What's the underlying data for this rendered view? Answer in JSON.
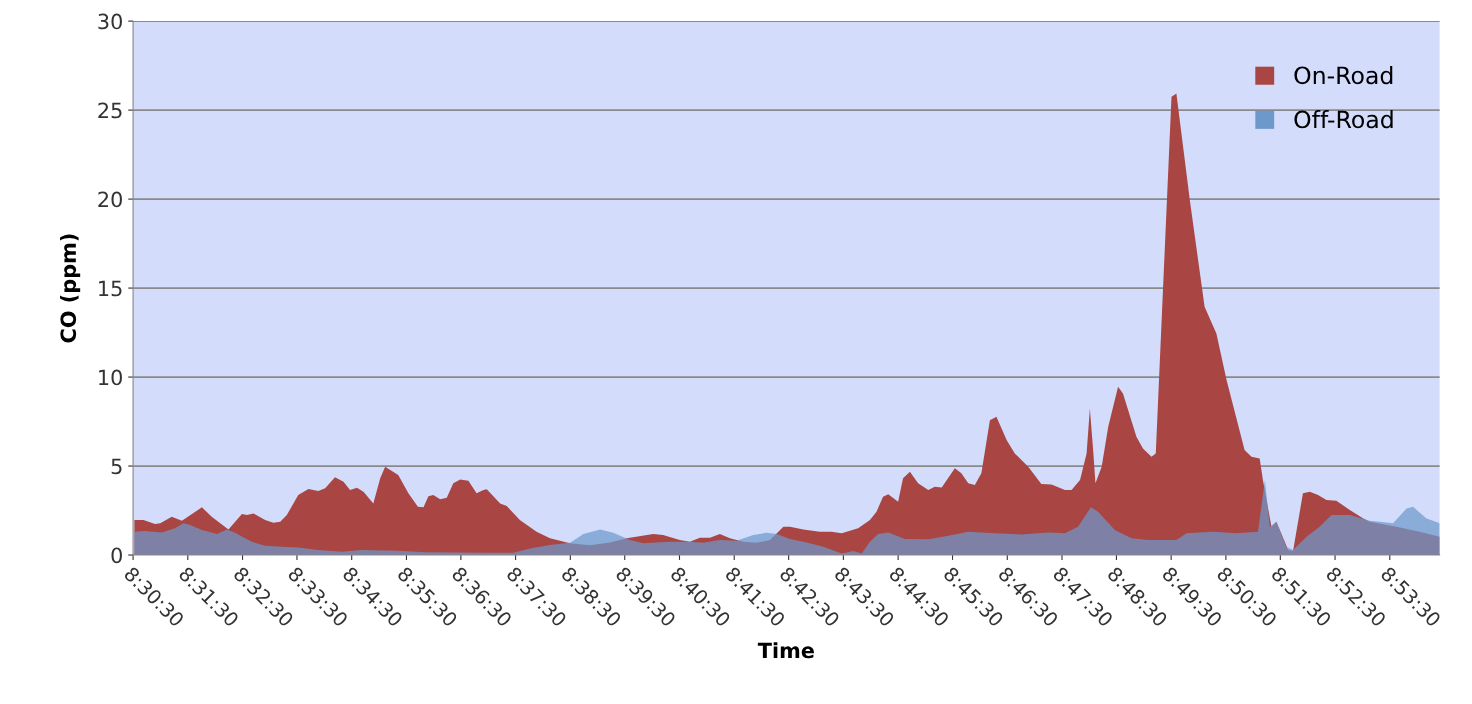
{
  "chart_data": {
    "type": "area",
    "xlabel": "Time",
    "ylabel": "CO (ppm)",
    "xlim": [
      8.5083,
      8.9069
    ],
    "ylim": [
      0,
      30
    ],
    "yticks": [
      0,
      5,
      10,
      15,
      20,
      25,
      30
    ],
    "xticks": [
      {
        "value": 8.5083,
        "label": "8:30:30"
      },
      {
        "value": 8.525,
        "label": "8:31:30"
      },
      {
        "value": 8.5417,
        "label": "8:32:30"
      },
      {
        "value": 8.5583,
        "label": "8:33:30"
      },
      {
        "value": 8.575,
        "label": "8:34:30"
      },
      {
        "value": 8.5917,
        "label": "8:35:30"
      },
      {
        "value": 8.6083,
        "label": "8:36:30"
      },
      {
        "value": 8.625,
        "label": "8:37:30"
      },
      {
        "value": 8.6417,
        "label": "8:38:30"
      },
      {
        "value": 8.6583,
        "label": "8:39:30"
      },
      {
        "value": 8.675,
        "label": "8:40:30"
      },
      {
        "value": 8.6917,
        "label": "8:41:30"
      },
      {
        "value": 8.7083,
        "label": "8:42:30"
      },
      {
        "value": 8.725,
        "label": "8:43:30"
      },
      {
        "value": 8.7417,
        "label": "8:44:30"
      },
      {
        "value": 8.7583,
        "label": "8:45:30"
      },
      {
        "value": 8.775,
        "label": "8:46:30"
      },
      {
        "value": 8.7917,
        "label": "8:47:30"
      },
      {
        "value": 8.8083,
        "label": "8:48:30"
      },
      {
        "value": 8.825,
        "label": "8:49:30"
      },
      {
        "value": 8.8417,
        "label": "8:50:30"
      },
      {
        "value": 8.8583,
        "label": "8:51:30"
      },
      {
        "value": 8.875,
        "label": "8:52:30"
      },
      {
        "value": 8.8917,
        "label": "8:53:30"
      }
    ],
    "grid": "y",
    "legend": "top right",
    "series": [
      {
        "name": "On-Road",
        "color": "#a94643",
        "x": [
          8.5087,
          8.5115,
          8.515,
          8.5166,
          8.5201,
          8.5232,
          8.5293,
          8.5323,
          8.5374,
          8.5415,
          8.543,
          8.545,
          8.5486,
          8.5511,
          8.5532,
          8.5552,
          8.5587,
          8.5618,
          8.5648,
          8.5669,
          8.5699,
          8.5725,
          8.5745,
          8.5766,
          8.5786,
          8.5816,
          8.5837,
          8.5852,
          8.5892,
          8.5923,
          8.5952,
          8.5969,
          8.5984,
          8.5999,
          8.602,
          8.604,
          8.606,
          8.6081,
          8.6106,
          8.6131,
          8.6152,
          8.6162,
          8.6203,
          8.6223,
          8.6263,
          8.6314,
          8.6355,
          8.6416,
          8.6477,
          8.6538,
          8.6589,
          8.667,
          8.67,
          8.6751,
          8.6782,
          8.6812,
          8.6843,
          8.6873,
          8.6904,
          8.6945,
          8.6985,
          8.7026,
          8.7067,
          8.7087,
          8.7128,
          8.7178,
          8.7214,
          8.7245,
          8.7295,
          8.7331,
          8.7351,
          8.7371,
          8.7387,
          8.7417,
          8.7432,
          8.7453,
          8.7478,
          8.7509,
          8.7529,
          8.755,
          8.759,
          8.761,
          8.7631,
          8.7651,
          8.7671,
          8.7697,
          8.7717,
          8.7748,
          8.7773,
          8.7814,
          8.7854,
          8.7885,
          8.7926,
          8.7946,
          8.7972,
          8.7992,
          8.8002,
          8.8012,
          8.8019,
          8.8038,
          8.8058,
          8.8088,
          8.8103,
          8.8144,
          8.8164,
          8.819,
          8.8203,
          8.8251,
          8.8266,
          8.8307,
          8.8352,
          8.8388,
          8.8419,
          8.8474,
          8.8495,
          8.852,
          8.853,
          8.8556,
          8.8571,
          8.8607,
          8.8622,
          8.8652,
          8.8673,
          8.8698,
          8.8724,
          8.8754,
          8.8795,
          8.8835,
          8.8856,
          8.8937,
          8.9008,
          8.9069
        ],
        "values": [
          1.97,
          1.97,
          1.74,
          1.78,
          2.15,
          1.93,
          2.68,
          2.15,
          1.44,
          2.3,
          2.25,
          2.34,
          1.97,
          1.81,
          1.87,
          2.25,
          3.37,
          3.71,
          3.6,
          3.75,
          4.37,
          4.12,
          3.65,
          3.78,
          3.56,
          2.9,
          4.31,
          4.96,
          4.49,
          3.47,
          2.71,
          2.68,
          3.31,
          3.37,
          3.13,
          3.22,
          4.03,
          4.25,
          4.17,
          3.47,
          3.65,
          3.69,
          2.9,
          2.75,
          1.97,
          1.31,
          0.94,
          0.66,
          0.55,
          0.7,
          0.94,
          1.18,
          1.12,
          0.84,
          0.75,
          0.97,
          0.97,
          1.18,
          0.94,
          0.75,
          0.69,
          0.84,
          1.59,
          1.59,
          1.44,
          1.31,
          1.31,
          1.22,
          1.5,
          1.97,
          2.43,
          3.28,
          3.41,
          3.0,
          4.31,
          4.68,
          4.03,
          3.65,
          3.84,
          3.8,
          4.87,
          4.59,
          4.03,
          3.93,
          4.59,
          7.58,
          7.77,
          6.46,
          5.71,
          4.96,
          3.99,
          3.97,
          3.65,
          3.65,
          4.21,
          5.71,
          8.24,
          5.9,
          4.03,
          4.96,
          7.21,
          9.46,
          9.08,
          6.65,
          5.99,
          5.52,
          5.71,
          25.75,
          25.94,
          19.94,
          13.95,
          12.45,
          9.83,
          5.9,
          5.52,
          5.43,
          4.21,
          1.59,
          1.87,
          0.28,
          0.24,
          3.47,
          3.56,
          3.37,
          3.09,
          3.05,
          2.53,
          2.06,
          1.87,
          1.59,
          1.31,
          1.03
        ]
      },
      {
        "name": "Off-Road",
        "color": "#6d98cc",
        "x": [
          8.5087,
          8.512,
          8.5171,
          8.5211,
          8.5237,
          8.5257,
          8.5293,
          8.5339,
          8.5369,
          8.5394,
          8.5445,
          8.5486,
          8.5537,
          8.5587,
          8.5648,
          8.572,
          8.5781,
          8.5892,
          8.5974,
          8.6157,
          8.6243,
          8.6294,
          8.6355,
          8.6416,
          8.6457,
          8.6508,
          8.6548,
          8.6599,
          8.664,
          8.6721,
          8.6782,
          8.6822,
          8.6873,
          8.6924,
          8.6975,
          8.7016,
          8.7046,
          8.7087,
          8.7138,
          8.7189,
          8.7245,
          8.728,
          8.7306,
          8.7331,
          8.7356,
          8.7387,
          8.7438,
          8.7509,
          8.757,
          8.7631,
          8.7712,
          8.7794,
          8.7875,
          8.7926,
          8.7966,
          8.8005,
          8.8027,
          8.8078,
          8.8129,
          8.8179,
          8.8266,
          8.8297,
          8.8378,
          8.8449,
          8.8515,
          8.8536,
          8.8551,
          8.8571,
          8.8601,
          8.8622,
          8.8663,
          8.8703,
          8.8739,
          8.8795,
          8.8856,
          8.8886,
          8.8927,
          8.8968,
          8.8988,
          8.9028,
          8.9069
        ],
        "values": [
          1.31,
          1.35,
          1.27,
          1.5,
          1.78,
          1.69,
          1.4,
          1.18,
          1.44,
          1.25,
          0.75,
          0.52,
          0.47,
          0.43,
          0.28,
          0.19,
          0.28,
          0.24,
          0.15,
          0.13,
          0.13,
          0.37,
          0.56,
          0.69,
          1.18,
          1.44,
          1.25,
          0.84,
          0.66,
          0.75,
          0.75,
          0.69,
          0.84,
          0.8,
          1.12,
          1.25,
          1.18,
          0.9,
          0.71,
          0.47,
          0.09,
          0.22,
          0.09,
          0.75,
          1.18,
          1.27,
          0.9,
          0.88,
          1.08,
          1.31,
          1.22,
          1.16,
          1.27,
          1.22,
          1.59,
          2.68,
          2.43,
          1.4,
          0.94,
          0.84,
          0.84,
          1.22,
          1.31,
          1.22,
          1.31,
          4.21,
          1.59,
          1.87,
          0.47,
          0.28,
          1.03,
          1.59,
          2.25,
          2.25,
          1.93,
          1.87,
          1.78,
          2.62,
          2.71,
          2.06,
          1.78
        ]
      }
    ]
  }
}
